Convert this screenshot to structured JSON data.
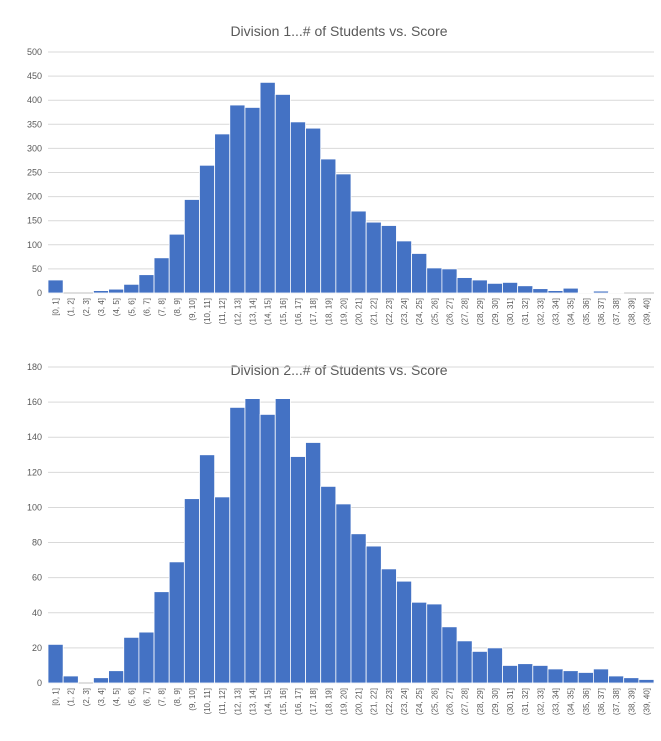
{
  "chart_data": [
    {
      "type": "bar",
      "title": "Division 1...# of Students vs. Score",
      "xlabel": "",
      "ylabel": "",
      "ylim": [
        0,
        500
      ],
      "yticks": [
        0,
        50,
        100,
        150,
        200,
        250,
        300,
        350,
        400,
        450,
        500
      ],
      "grid": true,
      "color": "#4472c4",
      "categories": [
        "[0, 1]",
        "(1, 2]",
        "(2, 3]",
        "(3, 4]",
        "(4, 5]",
        "(5, 6]",
        "(6, 7]",
        "(7, 8]",
        "(8, 9]",
        "(9, 10]",
        "(10, 11]",
        "(11, 12]",
        "(12, 13]",
        "(13, 14]",
        "(14, 15]",
        "(15, 16]",
        "(16, 17]",
        "(17, 18]",
        "(18, 19]",
        "(19, 20]",
        "(20, 21]",
        "(21, 22]",
        "(22, 23]",
        "(23, 24]",
        "(24, 25]",
        "(25, 26]",
        "(26, 27]",
        "(27, 28]",
        "(28, 29]",
        "(29, 30]",
        "(30, 31]",
        "(31, 32]",
        "(32, 33]",
        "(33, 34]",
        "(34, 35]",
        "(35, 36]",
        "(36, 37]",
        "(37, 38]",
        "(38, 39]",
        "(39, 40]"
      ],
      "values": [
        27,
        0,
        0,
        5,
        8,
        18,
        38,
        73,
        122,
        194,
        265,
        330,
        390,
        385,
        437,
        412,
        355,
        342,
        278,
        247,
        170,
        147,
        140,
        108,
        82,
        52,
        50,
        32,
        27,
        20,
        22,
        15,
        9,
        5,
        10,
        1,
        4,
        1,
        0,
        0
      ]
    },
    {
      "type": "bar",
      "title": "Division 2...# of Students vs. Score",
      "xlabel": "",
      "ylabel": "",
      "ylim": [
        0,
        180
      ],
      "yticks": [
        0,
        20,
        40,
        60,
        80,
        100,
        120,
        140,
        160,
        180
      ],
      "grid": true,
      "color": "#4472c4",
      "categories": [
        "[0, 1]",
        "(1, 2]",
        "(2, 3]",
        "(3, 4]",
        "(4, 5]",
        "(5, 6]",
        "(6, 7]",
        "(7, 8]",
        "(8, 9]",
        "(9, 10]",
        "(10, 11]",
        "(11, 12]",
        "(12, 13]",
        "(13, 14]",
        "(14, 15]",
        "(15, 16]",
        "(16, 17]",
        "(17, 18]",
        "(18, 19]",
        "(19, 20]",
        "(20, 21]",
        "(21, 22]",
        "(22, 23]",
        "(23, 24]",
        "(24, 25]",
        "(25, 26]",
        "(26, 27]",
        "(27, 28]",
        "(28, 29]",
        "(29, 30]",
        "(30, 31]",
        "(31, 32]",
        "(32, 33]",
        "(33, 34]",
        "(34, 35]",
        "(35, 36]",
        "(36, 37]",
        "(37, 38]",
        "(38, 39]",
        "(39, 40]"
      ],
      "values": [
        22,
        4,
        0,
        3,
        7,
        26,
        29,
        52,
        69,
        105,
        130,
        106,
        157,
        162,
        153,
        162,
        129,
        137,
        112,
        102,
        85,
        78,
        65,
        58,
        46,
        45,
        32,
        24,
        18,
        20,
        10,
        11,
        10,
        8,
        7,
        6,
        8,
        4,
        3,
        2
      ]
    }
  ]
}
